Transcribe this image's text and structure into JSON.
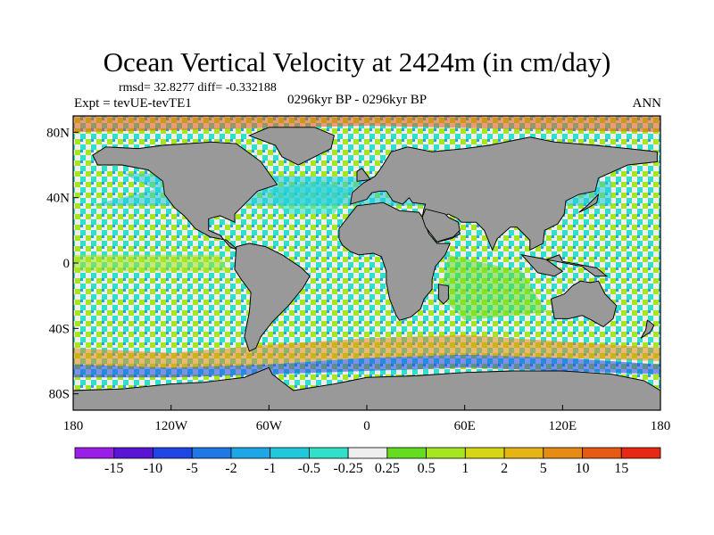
{
  "title": "Ocean Vertical Velocity at 2424m (in cm/day)",
  "stats": "rmsd= 32.8277 diff= -0.332188",
  "experiment": "Expt = tevUE-tevTE1",
  "period": "0296kyr BP - 0296kyr BP",
  "season": "ANN",
  "map": {
    "projection": "cylindrical-equidistant",
    "lon_range": [
      -180,
      180
    ],
    "lat_range": [
      -90,
      90
    ],
    "land_color": "#999999",
    "y_ticks": [
      {
        "lat": 80,
        "label": "80N"
      },
      {
        "lat": 40,
        "label": "40N"
      },
      {
        "lat": 0,
        "label": "0"
      },
      {
        "lat": -40,
        "label": "40S"
      },
      {
        "lat": -80,
        "label": "80S"
      }
    ],
    "x_ticks": [
      {
        "lon": -180,
        "label": "180"
      },
      {
        "lon": -120,
        "label": "120W"
      },
      {
        "lon": -60,
        "label": "60W"
      },
      {
        "lon": 0,
        "label": "0"
      },
      {
        "lon": 60,
        "label": "60E"
      },
      {
        "lon": 120,
        "label": "120E"
      },
      {
        "lon": 180,
        "label": "180"
      }
    ]
  },
  "colorbar": {
    "colors": [
      "#9b1ee8",
      "#5a14d6",
      "#2046e6",
      "#1e78e6",
      "#1ea6e6",
      "#20c8dc",
      "#30e0c8",
      "#eeeeee",
      "#64dc20",
      "#a6e620",
      "#d6d616",
      "#e6b414",
      "#e68c14",
      "#e65a14",
      "#e62814"
    ],
    "labels": [
      "-15",
      "-10",
      "-5",
      "-2",
      "-1",
      "-0.5",
      "-0.25",
      "0.25",
      "0.5",
      "1",
      "2",
      "5",
      "10",
      "15"
    ]
  }
}
